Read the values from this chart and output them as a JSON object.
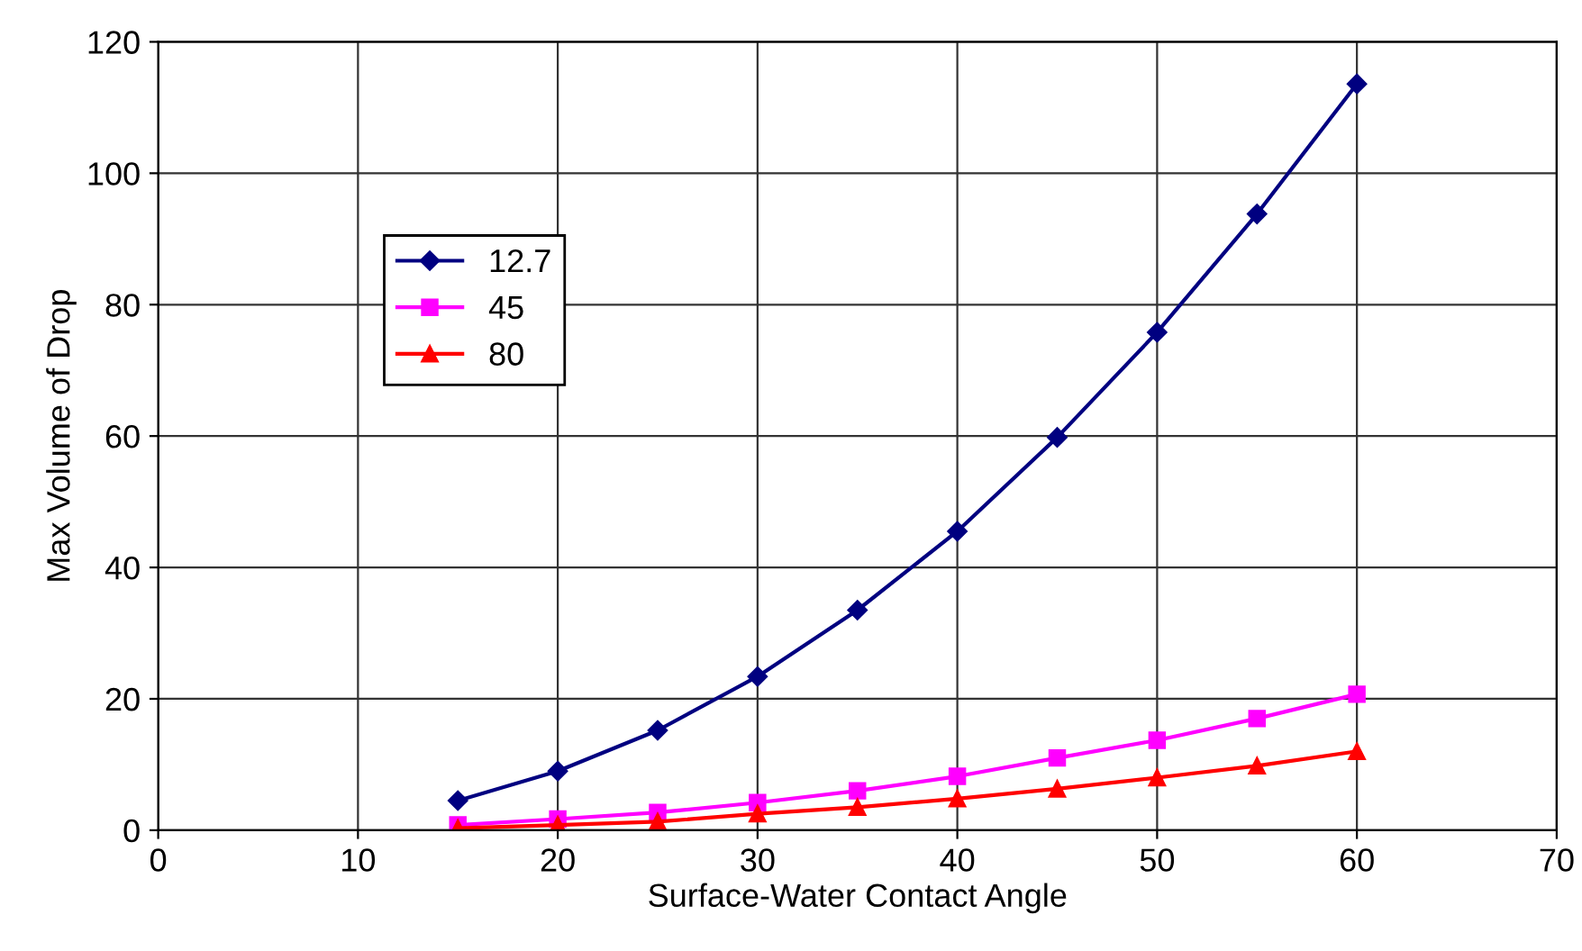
{
  "chart_data": {
    "type": "line",
    "xlabel": "Surface-Water Contact Angle",
    "ylabel": "Max Volume of Drop",
    "x": [
      15,
      20,
      25,
      30,
      35,
      40,
      45,
      50,
      55,
      60
    ],
    "series": [
      {
        "name": "12.7",
        "color": "#000080",
        "marker": "diamond",
        "values": [
          4.5,
          9,
          15.2,
          23.4,
          33.5,
          45.5,
          59.8,
          75.8,
          93.8,
          113.6
        ]
      },
      {
        "name": "45",
        "color": "#ff00ff",
        "marker": "square",
        "values": [
          0.8,
          1.7,
          2.7,
          4.2,
          6,
          8.2,
          11,
          13.7,
          17,
          20.7
        ]
      },
      {
        "name": "80",
        "color": "#ff0000",
        "marker": "triangle",
        "values": [
          0.3,
          0.8,
          1.3,
          2.5,
          3.5,
          4.8,
          6.3,
          8,
          9.8,
          12
        ]
      }
    ],
    "xlim": [
      0,
      70
    ],
    "xticks": [
      0,
      10,
      20,
      30,
      40,
      50,
      60,
      70
    ],
    "ylim": [
      0,
      120
    ],
    "yticks": [
      0,
      20,
      40,
      60,
      80,
      100,
      120
    ],
    "grid": true,
    "legend": "left",
    "line_style": "solid"
  }
}
